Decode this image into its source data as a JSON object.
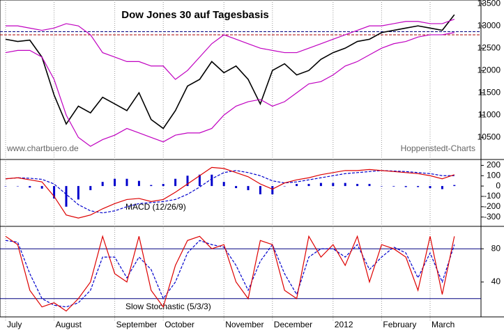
{
  "chart_data": [
    {
      "type": "line",
      "title": "Dow Jones 30 auf Tagesbasis",
      "source": "www.chartbuero.de",
      "provider": "Hoppenstedt-Charts",
      "categories": [
        "July",
        null,
        null,
        null,
        "August",
        null,
        null,
        null,
        null,
        "September",
        null,
        null,
        null,
        "October",
        null,
        null,
        null,
        null,
        "November",
        null,
        null,
        null,
        "December",
        null,
        null,
        null,
        null,
        "2012",
        null,
        null,
        null,
        "February",
        null,
        null,
        null,
        "March",
        null,
        null
      ],
      "ylim": [
        10020,
        13580
      ],
      "yticks": [
        10500,
        11000,
        11500,
        12000,
        12500,
        13000,
        13500
      ],
      "hlines": [
        12870,
        12800
      ],
      "series": [
        {
          "color": "#000000",
          "values": [
            12700,
            12650,
            12680,
            12300,
            11450,
            10800,
            11200,
            11050,
            11400,
            11250,
            11100,
            11500,
            10900,
            10700,
            11100,
            11650,
            11800,
            12200,
            11950,
            12100,
            11800,
            11250,
            12000,
            12150,
            11900,
            12000,
            12250,
            12400,
            12500,
            12650,
            12700,
            12850,
            12900,
            12950,
            13000,
            12950,
            12900,
            13250
          ]
        },
        {
          "color": "#c000c0",
          "values": [
            13000,
            13000,
            12950,
            12900,
            12950,
            13050,
            13000,
            12800,
            12400,
            12300,
            12200,
            12200,
            12100,
            12100,
            11800,
            12000,
            12300,
            12600,
            12800,
            12700,
            12600,
            12500,
            12450,
            12400,
            12400,
            12500,
            12600,
            12700,
            12800,
            12900,
            13000,
            13000,
            13050,
            13100,
            13100,
            13050,
            13050,
            13150
          ]
        },
        {
          "color": "#c000c0",
          "values": [
            12400,
            12450,
            12450,
            12300,
            11800,
            11000,
            10500,
            10300,
            10450,
            10550,
            10700,
            10600,
            10500,
            10400,
            10550,
            10600,
            10600,
            10700,
            11000,
            11200,
            11300,
            11350,
            11200,
            11300,
            11500,
            11700,
            11750,
            11900,
            12100,
            12200,
            12350,
            12500,
            12600,
            12650,
            12750,
            12800,
            12800,
            12850
          ]
        }
      ]
    },
    {
      "type": "line",
      "label": "MACD (12/26/9)",
      "ylim": [
        -390,
        250
      ],
      "yticks": [
        -300,
        -200,
        -100,
        0,
        100,
        200
      ],
      "series": [
        {
          "color": "#0000cc",
          "kind": "bar",
          "values": [
            0,
            0,
            -15,
            -25,
            -120,
            -200,
            -130,
            -40,
            40,
            70,
            70,
            50,
            10,
            20,
            70,
            100,
            110,
            110,
            40,
            -20,
            -40,
            -80,
            -80,
            0,
            20,
            20,
            30,
            30,
            30,
            20,
            20,
            0,
            -5,
            -10,
            -10,
            -20,
            -30,
            10
          ]
        },
        {
          "color": "#0000cc",
          "dash": true,
          "values": [
            70,
            80,
            75,
            65,
            20,
            -80,
            -180,
            -240,
            -260,
            -240,
            -200,
            -170,
            -160,
            -150,
            -130,
            -80,
            -10,
            70,
            130,
            150,
            130,
            100,
            50,
            30,
            40,
            60,
            80,
            100,
            120,
            130,
            140,
            150,
            145,
            140,
            130,
            120,
            100,
            100
          ]
        },
        {
          "color": "#dd0000",
          "values": [
            70,
            80,
            60,
            40,
            -100,
            -280,
            -310,
            -280,
            -220,
            -170,
            -130,
            -120,
            -150,
            -130,
            -60,
            20,
            100,
            180,
            170,
            130,
            90,
            20,
            -30,
            30,
            60,
            80,
            110,
            130,
            150,
            150,
            160,
            150,
            140,
            130,
            120,
            100,
            70,
            110
          ]
        }
      ]
    },
    {
      "type": "line",
      "label": "Slow Stochastic (5/3/3)",
      "ylim": [
        -2,
        107
      ],
      "yticks": [
        40,
        80
      ],
      "hlines": [
        80,
        20
      ],
      "series": [
        {
          "color": "#0000cc",
          "dash": true,
          "values": [
            90,
            88,
            50,
            20,
            12,
            10,
            15,
            30,
            70,
            70,
            45,
            70,
            55,
            20,
            40,
            75,
            90,
            85,
            82,
            60,
            30,
            65,
            85,
            50,
            25,
            70,
            80,
            80,
            70,
            85,
            55,
            70,
            82,
            75,
            45,
            75,
            40,
            85
          ]
        },
        {
          "color": "#dd0000",
          "values": [
            95,
            85,
            30,
            10,
            15,
            5,
            20,
            40,
            95,
            50,
            40,
            95,
            30,
            10,
            60,
            90,
            95,
            80,
            85,
            40,
            20,
            90,
            85,
            30,
            20,
            95,
            70,
            85,
            60,
            95,
            40,
            85,
            80,
            70,
            30,
            95,
            25,
            95
          ]
        }
      ]
    }
  ]
}
